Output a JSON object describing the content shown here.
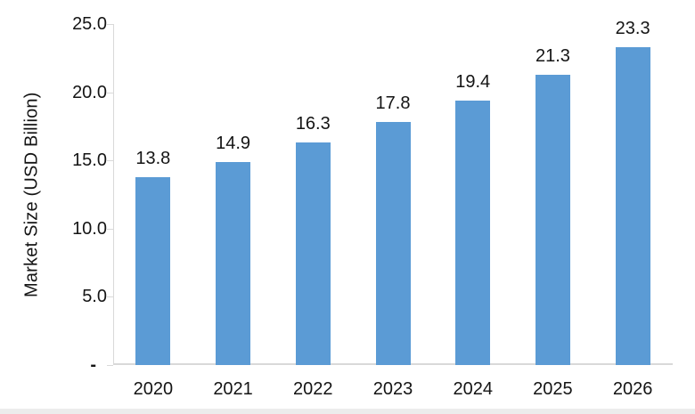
{
  "chart_data": {
    "type": "bar",
    "categories": [
      "2020",
      "2021",
      "2022",
      "2023",
      "2024",
      "2025",
      "2026"
    ],
    "values": [
      13.8,
      14.9,
      16.3,
      17.8,
      19.4,
      21.3,
      23.3
    ],
    "data_labels": [
      "13.8",
      "14.9",
      "16.3",
      "17.8",
      "19.4",
      "21.3",
      "23.3"
    ],
    "title": "",
    "xlabel": "",
    "ylabel": "Market Size (USD Billion)",
    "ylim": [
      0,
      25
    ],
    "ytick_interval": 5,
    "ytick_labels_top_to_bottom": [
      "25.0",
      "20.0",
      "15.0",
      "10.0",
      "5.0",
      "-"
    ],
    "grid": false,
    "legend_position": "none",
    "bar_color": "#5B9BD5",
    "axis_line_color": "#D9D9D9",
    "text_color": "#141414",
    "background_color": "#FFFFFF"
  }
}
